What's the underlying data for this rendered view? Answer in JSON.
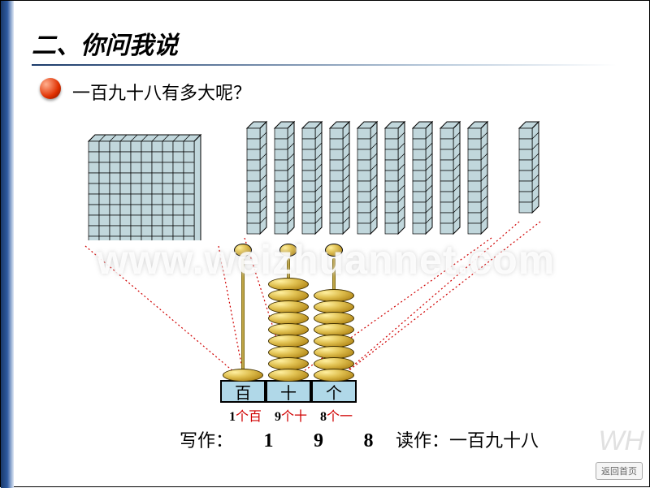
{
  "slide": {
    "section_title": "二、你问我说",
    "question": "一百九十八有多大呢？",
    "watermark": "www.weizhuannet.com",
    "return_label": "返回首页"
  },
  "blocks": {
    "hundred": {
      "rows": 10,
      "cols": 10,
      "cell_fill": "#c1d7dc",
      "stroke": "#000000"
    },
    "tens": {
      "sticks": 9,
      "rows": 10,
      "cell_fill": "#c1d7dc",
      "stroke": "#000000"
    },
    "ones": {
      "sticks": 1,
      "rows": 8,
      "cell_fill": "#c1d7dc",
      "stroke": "#000000"
    }
  },
  "abacus": {
    "labels": [
      "百",
      "十",
      "个"
    ],
    "beads": [
      1,
      9,
      8
    ],
    "base_fill": "#b0d8e8",
    "bead_fill": "#e0c050"
  },
  "counts": [
    {
      "n": "1",
      "unit": "个百"
    },
    {
      "n": "9",
      "unit": "个十"
    },
    {
      "n": "8",
      "unit": "个一"
    }
  ],
  "write": {
    "label": "写作：",
    "digits": [
      "1",
      "9",
      "8"
    ]
  },
  "read": {
    "label": "读作：",
    "text": "一百九十八"
  },
  "colors": {
    "dotted": "#d00000",
    "accent_text": "#d00000"
  }
}
